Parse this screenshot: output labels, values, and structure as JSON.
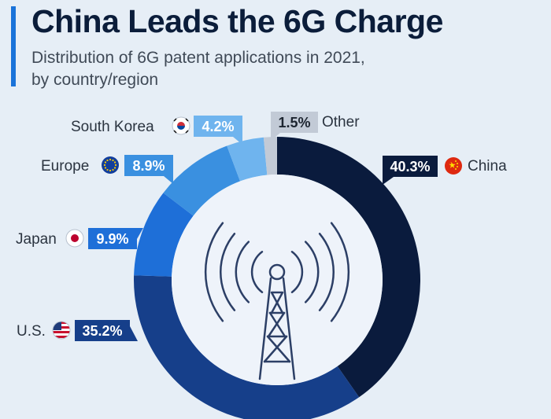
{
  "header": {
    "title": "China Leads the 6G Charge",
    "subtitle_line1": "Distribution of 6G patent applications in 2021,",
    "subtitle_line2": "by country/region"
  },
  "chart_data": {
    "type": "pie",
    "title": "China Leads the 6G Charge",
    "subtitle": "Distribution of 6G patent applications in 2021, by country/region",
    "categories": [
      "China",
      "U.S.",
      "Japan",
      "Europe",
      "South Korea",
      "Other"
    ],
    "values": [
      40.3,
      35.2,
      9.9,
      8.9,
      4.2,
      1.5
    ],
    "value_labels": [
      "40.3%",
      "35.2%",
      "9.9%",
      "8.9%",
      "4.2%",
      "1.5%"
    ],
    "colors": [
      "#0a1b3d",
      "#163f8a",
      "#1e6fd8",
      "#3a90e0",
      "#6fb4ee",
      "#c2cad6"
    ],
    "label_text_colors": [
      "#ffffff",
      "#ffffff",
      "#ffffff",
      "#ffffff",
      "#ffffff",
      "#1d2530"
    ],
    "flag_icons": [
      "china-flag-icon",
      "us-flag-icon",
      "japan-flag-icon",
      "eu-flag-icon",
      "south-korea-flag-icon",
      ""
    ],
    "center_icon": "cell-tower-icon",
    "legend": "none"
  }
}
